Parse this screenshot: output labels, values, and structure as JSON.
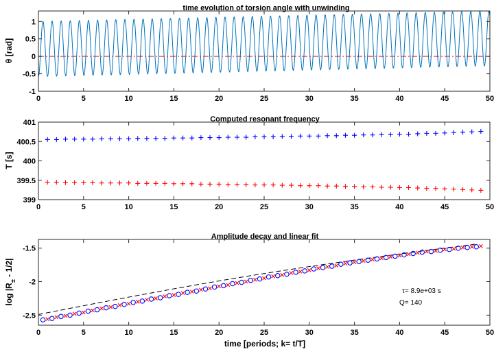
{
  "chart_data": [
    {
      "type": "line",
      "title": "time evolution of torsion angle with unwinding",
      "xlabel": "",
      "ylabel_symbol": "θ",
      "ylabel_unit": "[rad]",
      "xlim": [
        0,
        50
      ],
      "ylim": [
        -1,
        1.3
      ],
      "xticks": [
        0,
        5,
        10,
        15,
        20,
        25,
        30,
        35,
        40,
        45,
        50
      ],
      "yticks": [
        -1,
        -0.5,
        0,
        0.5,
        1
      ],
      "ytick_labels": [
        "-1",
        "-0.5",
        "0",
        "0.5",
        "1"
      ],
      "grid": false,
      "signal": {
        "cycles": 49.6,
        "max_start": 1.0,
        "max_end": 1.3,
        "min_start": -0.58,
        "min_end": -0.27,
        "color": "#0072BD"
      },
      "reference_line": {
        "y": 0,
        "color": "#D62728",
        "style": "dash-dot"
      }
    },
    {
      "type": "scatter",
      "title": "Computed resonant frequency",
      "xlabel": "",
      "ylabel": "T   [s]",
      "xlim": [
        0,
        50
      ],
      "ylim": [
        399,
        401
      ],
      "xticks": [
        0,
        5,
        10,
        15,
        20,
        25,
        30,
        35,
        40,
        45,
        50
      ],
      "yticks": [
        399,
        399.5,
        400,
        400.5,
        401
      ],
      "ytick_labels": [
        "399",
        "399.5",
        "400",
        "400.5",
        "401"
      ],
      "grid": false,
      "series": [
        {
          "marker": "+",
          "color": "#0000FF",
          "x": [
            1,
            2,
            3,
            4,
            5,
            6,
            7,
            8,
            9,
            10,
            11,
            12,
            13,
            14,
            15,
            16,
            17,
            18,
            19,
            20,
            21,
            22,
            23,
            24,
            25,
            26,
            27,
            28,
            29,
            30,
            31,
            32,
            33,
            34,
            35,
            36,
            37,
            38,
            39,
            40,
            41,
            42,
            43,
            44,
            45,
            46,
            47,
            48,
            49
          ],
          "values": [
            400.55,
            400.55,
            400.56,
            400.56,
            400.56,
            400.56,
            400.57,
            400.57,
            400.57,
            400.57,
            400.58,
            400.58,
            400.58,
            400.58,
            400.59,
            400.59,
            400.59,
            400.6,
            400.6,
            400.6,
            400.61,
            400.61,
            400.61,
            400.62,
            400.62,
            400.62,
            400.63,
            400.63,
            400.64,
            400.64,
            400.64,
            400.65,
            400.65,
            400.66,
            400.66,
            400.67,
            400.67,
            400.68,
            400.68,
            400.69,
            400.69,
            400.7,
            400.71,
            400.71,
            400.72,
            400.73,
            400.74,
            400.75,
            400.76
          ]
        },
        {
          "marker": "+",
          "color": "#FF0000",
          "x": [
            1,
            2,
            3,
            4,
            5,
            6,
            7,
            8,
            9,
            10,
            11,
            12,
            13,
            14,
            15,
            16,
            17,
            18,
            19,
            20,
            21,
            22,
            23,
            24,
            25,
            26,
            27,
            28,
            29,
            30,
            31,
            32,
            33,
            34,
            35,
            36,
            37,
            38,
            39,
            40,
            41,
            42,
            43,
            44,
            45,
            46,
            47,
            48,
            49
          ],
          "values": [
            399.45,
            399.45,
            399.44,
            399.44,
            399.44,
            399.44,
            399.43,
            399.43,
            399.43,
            399.43,
            399.42,
            399.42,
            399.42,
            399.42,
            399.41,
            399.41,
            399.41,
            399.4,
            399.4,
            399.4,
            399.39,
            399.39,
            399.39,
            399.38,
            399.38,
            399.38,
            399.37,
            399.37,
            399.36,
            399.36,
            399.36,
            399.35,
            399.35,
            399.34,
            399.34,
            399.33,
            399.33,
            399.32,
            399.32,
            399.31,
            399.31,
            399.3,
            399.29,
            399.29,
            399.28,
            399.27,
            399.26,
            399.25,
            399.24
          ]
        }
      ]
    },
    {
      "type": "scatter",
      "title": "Amplitude decay and linear fit",
      "xlabel": "time   [periods;  k= t/T]",
      "ylabel_main": "log |R",
      "ylabel_sub": "±",
      "ylabel_tail": " - 1/2|",
      "xlim": [
        0,
        50
      ],
      "ylim": [
        -2.65,
        -1.37
      ],
      "xticks": [
        0,
        5,
        10,
        15,
        20,
        25,
        30,
        35,
        40,
        45,
        50
      ],
      "yticks": [
        -2.5,
        -2,
        -1.5
      ],
      "ytick_labels": [
        "-2.5",
        "-2",
        "-1.5"
      ],
      "grid": false,
      "annotation_tau": "τ= 8.9e+03 s",
      "annotation_q": "Q= 140",
      "series": [
        {
          "marker": "o",
          "color": "#0000FF",
          "x": [
            0.5,
            1.5,
            2.5,
            3.5,
            4.5,
            5.5,
            6.5,
            7.5,
            8.5,
            9.5,
            10.5,
            11.5,
            12.5,
            13.5,
            14.5,
            15.5,
            16.5,
            17.5,
            18.5,
            19.5,
            20.5,
            21.5,
            22.5,
            23.5,
            24.5,
            25.5,
            26.5,
            27.5,
            28.5,
            29.5,
            30.5,
            31.5,
            32.5,
            33.5,
            34.5,
            35.5,
            36.5,
            37.5,
            38.5,
            39.5,
            40.5,
            41.5,
            42.5,
            43.5,
            44.5,
            45.5,
            46.5,
            47.5,
            48.5
          ],
          "values": [
            -2.57,
            -2.55,
            -2.52,
            -2.5,
            -2.47,
            -2.44,
            -2.42,
            -2.39,
            -2.37,
            -2.34,
            -2.31,
            -2.29,
            -2.26,
            -2.24,
            -2.21,
            -2.19,
            -2.16,
            -2.14,
            -2.11,
            -2.08,
            -2.06,
            -2.03,
            -2.01,
            -1.98,
            -1.96,
            -1.93,
            -1.91,
            -1.89,
            -1.86,
            -1.84,
            -1.81,
            -1.79,
            -1.77,
            -1.74,
            -1.72,
            -1.7,
            -1.68,
            -1.66,
            -1.64,
            -1.62,
            -1.6,
            -1.58,
            -1.56,
            -1.55,
            -1.53,
            -1.52,
            -1.5,
            -1.49,
            -1.48
          ]
        },
        {
          "marker": "x",
          "color": "#FF0000",
          "x": [
            1,
            2,
            3,
            4,
            5,
            6,
            7,
            8,
            9,
            10,
            11,
            12,
            13,
            14,
            15,
            16,
            17,
            18,
            19,
            20,
            21,
            22,
            23,
            24,
            25,
            26,
            27,
            28,
            29,
            30,
            31,
            32,
            33,
            34,
            35,
            36,
            37,
            38,
            39,
            40,
            41,
            42,
            43,
            44,
            45,
            46,
            47,
            48,
            49
          ],
          "values": [
            -2.56,
            -2.53,
            -2.51,
            -2.48,
            -2.46,
            -2.43,
            -2.4,
            -2.38,
            -2.35,
            -2.33,
            -2.3,
            -2.27,
            -2.25,
            -2.22,
            -2.2,
            -2.17,
            -2.15,
            -2.12,
            -2.1,
            -2.07,
            -2.05,
            -2.02,
            -2,
            -1.97,
            -1.95,
            -1.92,
            -1.9,
            -1.87,
            -1.85,
            -1.83,
            -1.8,
            -1.78,
            -1.76,
            -1.73,
            -1.71,
            -1.69,
            -1.67,
            -1.65,
            -1.63,
            -1.61,
            -1.59,
            -1.57,
            -1.55,
            -1.54,
            -1.52,
            -1.51,
            -1.49,
            -1.48,
            -1.47
          ]
        }
      ],
      "fit": {
        "x": [
          0,
          48.5
        ],
        "values": [
          -2.49,
          -1.44
        ],
        "color": "#000000",
        "style": "dashed"
      }
    }
  ]
}
